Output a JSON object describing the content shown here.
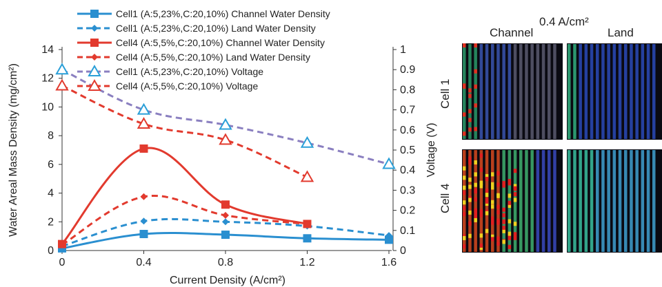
{
  "chart_data": {
    "type": "line",
    "title": "",
    "xlabel": "Current Density (A/cm²)",
    "ylabel": "Water Areal Mass Density (mg/cm²)",
    "y2label": "Voltage (V)",
    "xlim": [
      0,
      1.6
    ],
    "ylim": [
      0,
      14
    ],
    "y2lim": [
      0,
      1
    ],
    "x_ticks": [
      "0",
      "0.4",
      "0.8",
      "1.2",
      "1.6"
    ],
    "y_ticks": [
      "0",
      "2",
      "4",
      "6",
      "8",
      "10",
      "12",
      "14"
    ],
    "y2_ticks": [
      "0",
      "0.1",
      "0.2",
      "0.3",
      "0.4",
      "0.5",
      "0.6",
      "0.7",
      "0.8",
      "0.9",
      "1"
    ],
    "grid": false,
    "legend_position": "top-left",
    "series": [
      {
        "name": "Cell1 (A:5,23%,C:20,10%) Channel Water Density",
        "axis": "left",
        "color": "#2a8fd0",
        "dash": "solid",
        "marker": "square",
        "x": [
          0,
          0.4,
          0.8,
          1.2,
          1.6
        ],
        "y": [
          0.15,
          1.15,
          1.1,
          0.85,
          0.75
        ]
      },
      {
        "name": "Cell1 (A:5,23%,C:20,10%) Land Water Density",
        "axis": "left",
        "color": "#2a8fd0",
        "dash": "dashed",
        "marker": "diamond",
        "x": [
          0,
          0.4,
          0.8,
          1.2,
          1.6
        ],
        "y": [
          0.3,
          2.05,
          2.0,
          1.7,
          1.05
        ]
      },
      {
        "name": "Cell4 (A:5,5%,C:20,10%) Channel Water Density",
        "axis": "left",
        "color": "#e23a2e",
        "dash": "solid",
        "marker": "square",
        "x": [
          0,
          0.4,
          0.8,
          1.2
        ],
        "y": [
          0.45,
          7.1,
          3.2,
          1.85
        ]
      },
      {
        "name": "Cell4 (A:5,5%,C:20,10%) Land Water Density",
        "axis": "left",
        "color": "#e23a2e",
        "dash": "dashed",
        "marker": "diamond",
        "x": [
          0,
          0.4,
          0.8,
          1.2
        ],
        "y": [
          0.4,
          3.75,
          2.45,
          1.85
        ]
      },
      {
        "name": "Cell1 (A:5,23%,C:20,10%) Voltage",
        "axis": "right",
        "color": "#8a7fc0",
        "dash": "dashed",
        "marker": "triangle",
        "marker_color": "#2a9fd8",
        "x": [
          0,
          0.4,
          0.8,
          1.2,
          1.6
        ],
        "y": [
          0.9,
          0.7,
          0.625,
          0.535,
          0.43
        ]
      },
      {
        "name": "Cell4 (A:5,5%,C:20,10%) Voltage",
        "axis": "right",
        "color": "#e23a2e",
        "dash": "dashed",
        "marker": "triangle",
        "marker_color": "#e23a2e",
        "x": [
          0,
          0.4,
          0.8,
          1.2
        ],
        "y": [
          0.82,
          0.63,
          0.55,
          0.365
        ]
      }
    ]
  },
  "image_panel": {
    "title": "0.4 A/cm²",
    "columns": [
      "Channel",
      "Land"
    ],
    "rows": [
      "Cell 1",
      "Cell 4"
    ]
  }
}
